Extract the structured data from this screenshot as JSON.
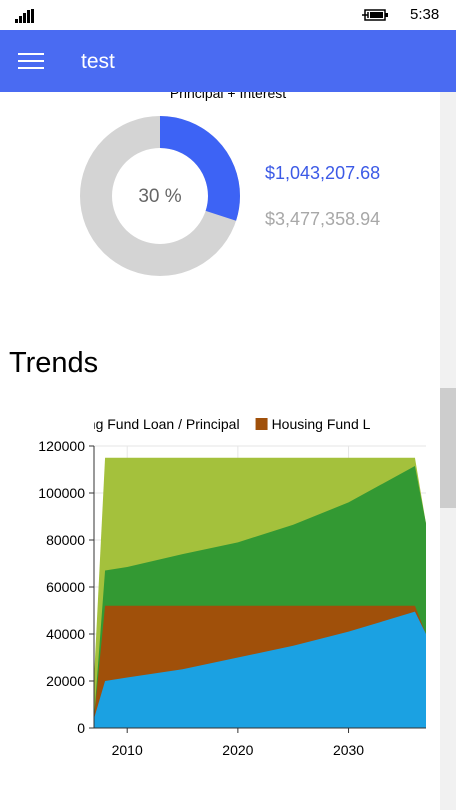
{
  "status_bar": {
    "time": "5:38",
    "signal_icon": "signal-bars-icon",
    "battery_icon": "battery-charging-icon"
  },
  "app_bar": {
    "title": "test",
    "menu_icon": "hamburger-menu-icon",
    "color": "#4a6bf2"
  },
  "donut": {
    "title": "Principal + Interest",
    "percent_label": "30 %",
    "fraction": 0.3,
    "amount_primary": "$1,043,207.68",
    "amount_secondary": "$3,477,358.94",
    "colors": {
      "primary": "#3d63f5",
      "secondary": "#d4d4d4"
    }
  },
  "trends": {
    "heading": "Trends"
  },
  "chart_data": {
    "type": "area",
    "legend": [
      {
        "label": "Housing Fund Loan / Principal",
        "color": "#1ba1e2"
      },
      {
        "label": "Housing Fund L",
        "color": "#a0500a"
      }
    ],
    "x_ticks": [
      "2010",
      "2020",
      "2030"
    ],
    "y_ticks": [
      "0",
      "20000",
      "40000",
      "60000",
      "80000",
      "100000",
      "120000"
    ],
    "xlim": [
      2007,
      2037
    ],
    "ylim": [
      0,
      120000
    ],
    "series": [
      {
        "color": "#1ba1e2",
        "x": [
          2007,
          2008,
          2010,
          2015,
          2020,
          2025,
          2030,
          2036,
          2037
        ],
        "values": [
          4000,
          20000,
          21500,
          25000,
          30000,
          35000,
          41000,
          49500,
          40000
        ]
      },
      {
        "color": "#a0500a",
        "x": [
          2007,
          2008,
          2036,
          2037
        ],
        "values": [
          4000,
          52000,
          52000,
          40000
        ]
      },
      {
        "color": "#339933",
        "x": [
          2007,
          2008,
          2010,
          2015,
          2020,
          2025,
          2030,
          2036,
          2037
        ],
        "values": [
          4000,
          67000,
          68500,
          74000,
          79000,
          86500,
          96000,
          111500,
          87000
        ]
      },
      {
        "color": "#a4c13c",
        "x": [
          2007,
          2008,
          2036,
          2037
        ],
        "values": [
          21000,
          115000,
          115000,
          87000
        ]
      }
    ],
    "grid": true
  }
}
